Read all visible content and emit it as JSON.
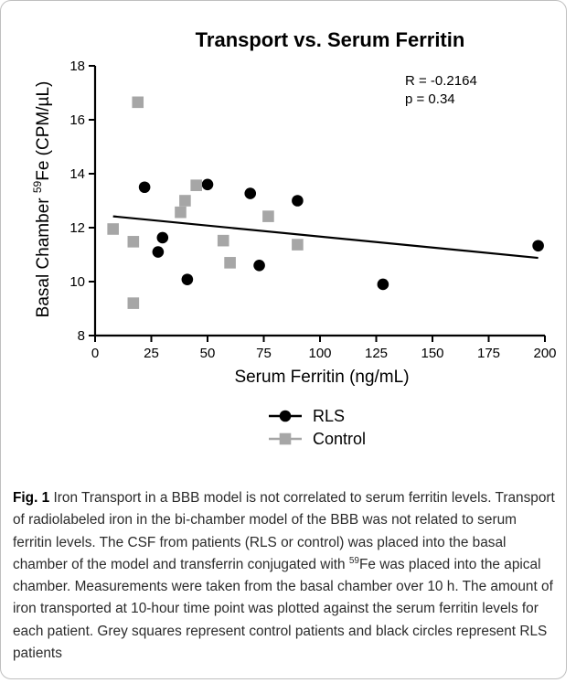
{
  "chart_data": {
    "type": "scatter",
    "title": "Transport vs. Serum Ferritin",
    "xlabel": "Serum Ferritin (ng/mL)",
    "ylabel_prefix": "Basal Chamber ",
    "ylabel_sup": "59",
    "ylabel_suffix": "Fe (CPM/µL)",
    "xlim": [
      0,
      200
    ],
    "ylim": [
      8,
      18
    ],
    "x_ticks": [
      "0",
      "25",
      "50",
      "75",
      "100",
      "125",
      "150",
      "175",
      "200"
    ],
    "y_ticks": [
      "8",
      "10",
      "12",
      "14",
      "16",
      "18"
    ],
    "annotation_r": "R = -0.2164",
    "annotation_p": "p = 0.34",
    "regression_line": {
      "x": [
        8,
        197
      ],
      "y": [
        12.42,
        10.88
      ]
    },
    "series": [
      {
        "name": "RLS",
        "marker": "circle",
        "color": "#000000",
        "points": [
          {
            "x": 22,
            "y": 13.5
          },
          {
            "x": 50,
            "y": 13.6
          },
          {
            "x": 69,
            "y": 13.27
          },
          {
            "x": 90,
            "y": 13.0
          },
          {
            "x": 30,
            "y": 11.63
          },
          {
            "x": 28,
            "y": 11.1
          },
          {
            "x": 41,
            "y": 10.08
          },
          {
            "x": 73,
            "y": 10.6
          },
          {
            "x": 128,
            "y": 9.9
          },
          {
            "x": 197,
            "y": 11.33
          }
        ]
      },
      {
        "name": "Control",
        "marker": "square",
        "color": "#a6a6a6",
        "points": [
          {
            "x": 19,
            "y": 16.65
          },
          {
            "x": 45,
            "y": 13.57
          },
          {
            "x": 40,
            "y": 13.0
          },
          {
            "x": 38,
            "y": 12.57
          },
          {
            "x": 77,
            "y": 12.42
          },
          {
            "x": 8,
            "y": 11.95
          },
          {
            "x": 17,
            "y": 11.48
          },
          {
            "x": 57,
            "y": 11.52
          },
          {
            "x": 90,
            "y": 11.37
          },
          {
            "x": 60,
            "y": 10.7
          },
          {
            "x": 17,
            "y": 9.2
          }
        ]
      }
    ],
    "legend_position": "bottom-center"
  },
  "caption": {
    "label": "Fig. 1",
    "text_part1": " Iron Transport in a BBB model is not correlated to serum ferritin levels. Transport of radiolabeled iron in the bi-chamber model of the BBB was not related to serum ferritin levels. The CSF from patients (RLS or control) was placed into the basal chamber of the model and transferrin conjugated with ",
    "sup": "59",
    "text_part2": "Fe was placed into the apical chamber. Measurements were taken from the basal chamber over 10 h. The amount of iron transported at 10-hour time point was plotted against the serum ferritin levels for each patient. Grey squares represent control patients and black circles represent RLS patients"
  }
}
